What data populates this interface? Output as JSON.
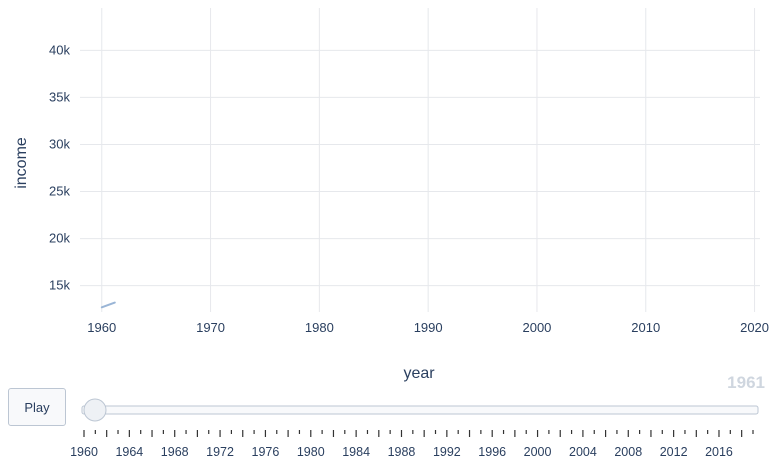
{
  "chart_data": {
    "type": "line",
    "xlabel": "year",
    "ylabel": "income",
    "xlim": [
      1958,
      2020.5
    ],
    "ylim": [
      12200,
      44500
    ],
    "x_ticks": [
      1960,
      1970,
      1980,
      1990,
      2000,
      2010,
      2020
    ],
    "y_ticks": [
      15000,
      20000,
      25000,
      30000,
      35000,
      40000
    ],
    "y_tick_labels": [
      "15k",
      "20k",
      "25k",
      "30k",
      "35k",
      "40k"
    ],
    "grid": true,
    "series": [
      {
        "color": "#9ab5d6",
        "x": [
          1960,
          1961.2
        ],
        "y": [
          12700,
          13200
        ]
      }
    ]
  },
  "slider": {
    "current_value": "1961",
    "min": 1960,
    "max": 2019,
    "value": 1960,
    "labels": [
      "1960",
      "1964",
      "1968",
      "1972",
      "1976",
      "1980",
      "1984",
      "1988",
      "1992",
      "1996",
      "2000",
      "2004",
      "2008",
      "2012",
      "2016"
    ]
  },
  "controls": {
    "play_label": "Play"
  }
}
